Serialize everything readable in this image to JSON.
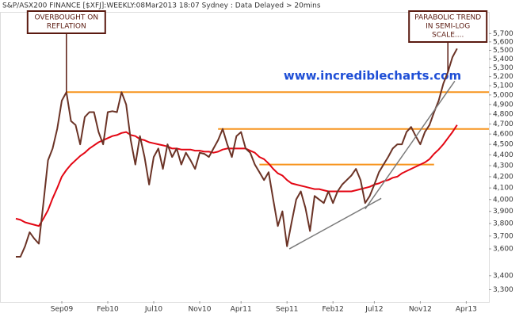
{
  "chart_data": {
    "type": "line",
    "title": "S&P/ASX200 FINANCE [$XFJ]:WEEKLY:08Mar2013 18:07 Sydney : Data Delayed > 20mins",
    "watermark": "www.incrediblecharts.com",
    "log_scale": true,
    "categories": [
      null,
      null,
      null,
      null,
      null,
      null,
      null,
      null,
      null,
      null,
      "Sep09",
      null,
      null,
      null,
      null,
      null,
      null,
      null,
      null,
      null,
      "Feb10",
      null,
      null,
      null,
      null,
      null,
      null,
      null,
      null,
      null,
      "Jul10",
      null,
      null,
      null,
      null,
      null,
      null,
      null,
      null,
      null,
      "Nov10",
      null,
      null,
      null,
      null,
      null,
      null,
      null,
      null,
      "Apr11",
      null,
      null,
      null,
      null,
      null,
      null,
      null,
      null,
      null,
      "Sep11",
      null,
      null,
      null,
      null,
      null,
      null,
      null,
      null,
      null,
      "Feb12",
      null,
      null,
      null,
      null,
      null,
      null,
      null,
      null,
      "Jul12",
      null,
      null,
      null,
      null,
      null,
      null,
      null,
      null,
      null,
      "Nov12",
      null,
      null,
      null,
      null,
      null,
      null,
      null,
      null,
      null,
      "Apr13"
    ],
    "series": [
      {
        "color": "#6b3326",
        "values": [
          3540,
          3540,
          3620,
          3730,
          3680,
          3640,
          3970,
          4350,
          4460,
          4650,
          4940,
          5030,
          4730,
          4690,
          4500,
          4770,
          4820,
          4820,
          4620,
          4500,
          4820,
          4830,
          4820,
          5030,
          4900,
          4540,
          4310,
          4580,
          4380,
          4130,
          4380,
          4460,
          4270,
          4500,
          4380,
          4460,
          4310,
          4420,
          4350,
          4270,
          4420,
          4410,
          4380,
          4460,
          4540,
          4650,
          4500,
          4380,
          4580,
          4620,
          4460,
          4420,
          4310,
          4240,
          4170,
          4240,
          4000,
          3780,
          3900,
          3620,
          3810,
          4000,
          4070,
          3930,
          3740,
          4030,
          4000,
          3970,
          4070,
          3970,
          4070,
          4130,
          4170,
          4210,
          4270,
          4170,
          3970,
          4030,
          4130,
          4240,
          4310,
          4380,
          4460,
          4500,
          4500,
          4620,
          4670,
          4580,
          4500,
          4620,
          4690,
          4820,
          4940,
          5120,
          5250,
          5420,
          5520,
          null,
          null
        ]
      },
      {
        "color": "#e30613",
        "values": [
          3840,
          3830,
          3810,
          3800,
          3790,
          3780,
          3840,
          3910,
          4010,
          4100,
          4200,
          4260,
          4310,
          4350,
          4390,
          4420,
          4460,
          4490,
          4520,
          4540,
          4560,
          4580,
          4590,
          4610,
          4620,
          4590,
          4580,
          4550,
          4540,
          4520,
          4510,
          4500,
          4490,
          4480,
          4460,
          4460,
          4450,
          4450,
          4450,
          4440,
          4440,
          4430,
          4430,
          4420,
          4430,
          4450,
          4460,
          4460,
          4460,
          4460,
          4460,
          4440,
          4420,
          4380,
          4360,
          4320,
          4270,
          4230,
          4210,
          4170,
          4140,
          4130,
          4120,
          4110,
          4100,
          4090,
          4090,
          4080,
          4070,
          4070,
          4070,
          4070,
          4070,
          4070,
          4080,
          4090,
          4100,
          4110,
          4130,
          4140,
          4160,
          4170,
          4190,
          4200,
          4230,
          4250,
          4270,
          4290,
          4310,
          4330,
          4360,
          4410,
          4450,
          4500,
          4560,
          4620,
          4690,
          null,
          null
        ]
      }
    ],
    "reference_color": "#f7941d",
    "reference_lines": [
      {
        "value": 5030,
        "start": 11
      },
      {
        "value": 4650,
        "start": 44
      },
      {
        "value": 4310,
        "start": 53,
        "end": 91
      }
    ],
    "trend_color": "#7a7a7a",
    "trend_lines": [
      {
        "x": [
          59.5,
          79.5
        ],
        "values": [
          3600,
          4010
        ]
      },
      {
        "x": [
          76,
          95.5
        ],
        "values": [
          3920,
          5150
        ]
      }
    ],
    "annotations": [
      {
        "lines": [
          "OVERBOUGHT ON",
          "REFLATION"
        ],
        "index": 11
      },
      {
        "lines": [
          "PARABOLIC TREND",
          "IN SEMI-LOG",
          "SCALE...."
        ],
        "index": 94
      }
    ],
    "ylim": [
      3220,
      5960
    ],
    "yticks": [
      {
        "value": 3300,
        "label": "3,300"
      },
      {
        "value": 3400,
        "label": "3,400"
      },
      {
        "value": 3600,
        "label": "3,600"
      },
      {
        "value": 3700,
        "label": "3,700"
      },
      {
        "value": 3800,
        "label": "3,800"
      },
      {
        "value": 3900,
        "label": "3,900"
      },
      {
        "value": 4000,
        "label": "4,000"
      },
      {
        "value": 4100,
        "label": "4,100"
      },
      {
        "value": 4200,
        "label": "4,200"
      },
      {
        "value": 4300,
        "label": "4,300"
      },
      {
        "value": 4400,
        "label": "4,400"
      },
      {
        "value": 4500,
        "label": "4,500"
      },
      {
        "value": 4600,
        "label": "4,600"
      },
      {
        "value": 4700,
        "label": "4,700"
      },
      {
        "value": 4800,
        "label": "4,800"
      },
      {
        "value": 4900,
        "label": "4,900"
      },
      {
        "value": 5000,
        "label": "5,000"
      },
      {
        "value": 5100,
        "label": "5,100"
      },
      {
        "value": 5200,
        "label": "5,200"
      },
      {
        "value": 5300,
        "label": "5,300"
      },
      {
        "value": 5400,
        "label": "5,400"
      },
      {
        "value": 5500,
        "label": "5,500"
      },
      {
        "value": 5600,
        "label": "5,600"
      },
      {
        "value": 5700,
        "label": "5,700"
      }
    ]
  }
}
